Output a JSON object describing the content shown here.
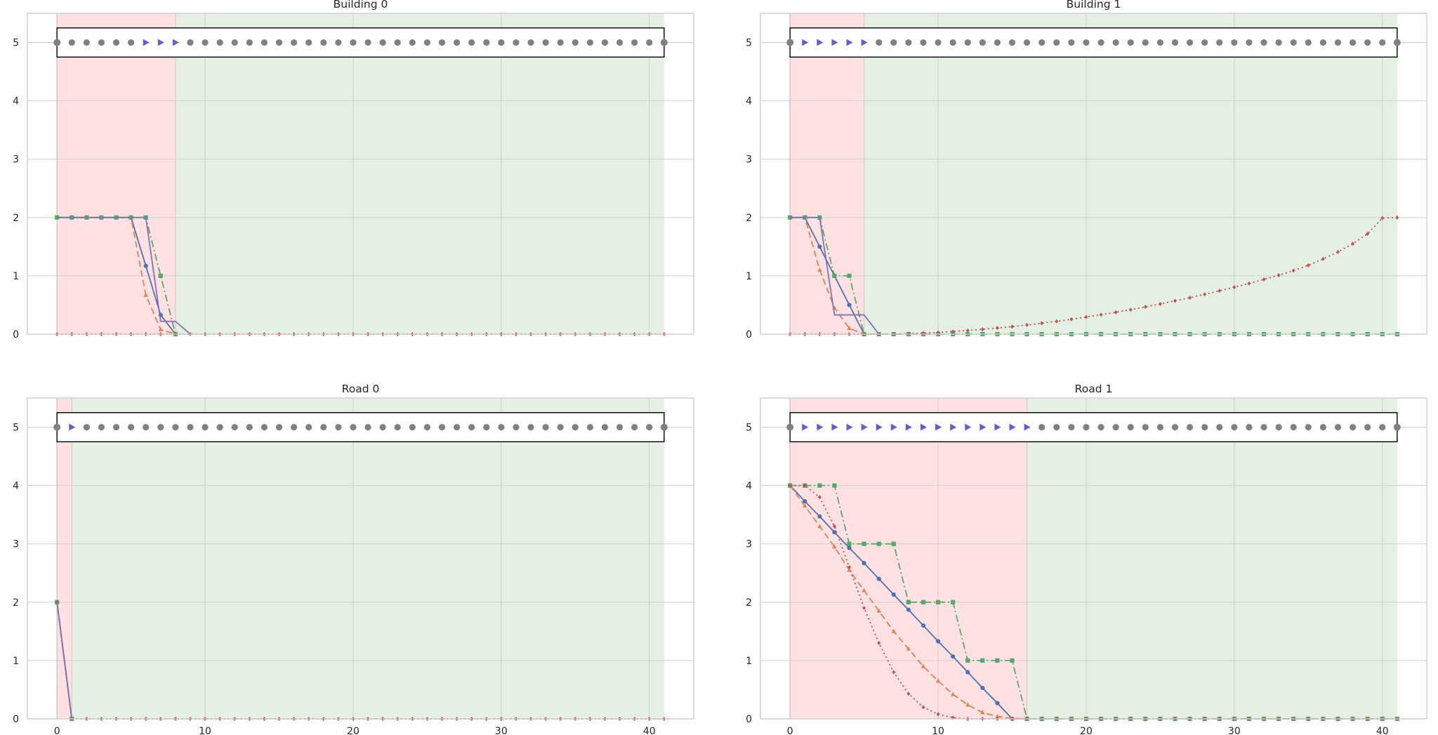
{
  "figure": {
    "background": "#ffffff",
    "colors": {
      "red_region": "#ffe1e3",
      "green_region": "#e3f0e2",
      "grid": "#cfcfcf",
      "spine": "#cccccc",
      "marker_gray": "#808080",
      "marker_arrow": "#6a5acd",
      "box_edge": "#000000",
      "series_blue": "#4c72b0",
      "series_orange": "#dd8452",
      "series_green": "#55a868",
      "series_red": "#c44e52",
      "series_purple": "#8172b3"
    }
  },
  "chart_data": [
    {
      "title": "Building 0",
      "type": "line",
      "xlim": [
        -2,
        43
      ],
      "ylim": [
        0,
        5.5
      ],
      "xticks": [
        0,
        10,
        20,
        30,
        40
      ],
      "yticks": [
        0,
        1,
        2,
        3,
        4,
        5
      ],
      "show_xtick_labels": false,
      "grid": true,
      "red_region": [
        0,
        8
      ],
      "green_region": [
        8,
        41
      ],
      "status_row": {
        "y": 5,
        "arrow_steps": [
          6,
          7,
          8
        ]
      },
      "series": [
        {
          "style": "solid",
          "color": "#4c72b0",
          "marker": "circle",
          "x": [
            0,
            1,
            2,
            3,
            4,
            5,
            6,
            7,
            8
          ],
          "y": [
            2,
            2,
            2,
            2,
            2,
            2,
            1.17,
            0.33,
            0
          ]
        },
        {
          "style": "dashed",
          "color": "#dd8452",
          "marker": "triangle",
          "x": [
            0,
            1,
            2,
            3,
            4,
            5,
            6,
            7,
            8
          ],
          "y": [
            2,
            2,
            2,
            2,
            2,
            2,
            0.67,
            0.08,
            0
          ]
        },
        {
          "style": "dashdot",
          "color": "#55a868",
          "marker": "square",
          "x": [
            0,
            1,
            2,
            3,
            4,
            5,
            6,
            7,
            8
          ],
          "y": [
            2,
            2,
            2,
            2,
            2,
            2,
            2,
            1,
            0
          ]
        },
        {
          "style": "dotted",
          "color": "#c44e52",
          "marker": "diamond",
          "x": [
            0,
            1,
            2,
            3,
            4,
            5,
            6,
            7,
            8,
            9,
            10,
            11,
            12,
            13,
            14,
            15,
            16,
            17,
            18,
            19,
            20,
            21,
            22,
            23,
            24,
            25,
            26,
            27,
            28,
            29,
            30,
            31,
            32,
            33,
            34,
            35,
            36,
            37,
            38,
            39,
            40,
            41
          ],
          "y": [
            0,
            0,
            0,
            0,
            0,
            0,
            0,
            0,
            0,
            0,
            0,
            0,
            0,
            0,
            0,
            0,
            0,
            0,
            0,
            0,
            0,
            0,
            0,
            0,
            0,
            0,
            0,
            0,
            0,
            0,
            0,
            0,
            0,
            0,
            0,
            0,
            0,
            0,
            0,
            0,
            0,
            0
          ]
        },
        {
          "style": "solid",
          "color": "#8172b3",
          "marker": "none",
          "x": [
            0,
            1,
            2,
            3,
            4,
            5,
            6,
            7,
            8,
            9
          ],
          "y": [
            2,
            2,
            2,
            2,
            2,
            2,
            2,
            0.22,
            0.22,
            0
          ]
        }
      ]
    },
    {
      "title": "Building 1",
      "type": "line",
      "xlim": [
        -2,
        43
      ],
      "ylim": [
        0,
        5.5
      ],
      "xticks": [
        0,
        10,
        20,
        30,
        40
      ],
      "yticks": [
        0,
        1,
        2,
        3,
        4,
        5
      ],
      "show_xtick_labels": false,
      "grid": true,
      "red_region": [
        0,
        5
      ],
      "green_region": [
        5,
        41
      ],
      "status_row": {
        "y": 5,
        "arrow_steps": [
          1,
          2,
          3,
          4,
          5
        ]
      },
      "series": [
        {
          "style": "solid",
          "color": "#4c72b0",
          "marker": "circle",
          "x": [
            0,
            1,
            2,
            3,
            4,
            5
          ],
          "y": [
            2,
            2,
            1.5,
            1,
            0.5,
            0
          ]
        },
        {
          "style": "dashed",
          "color": "#dd8452",
          "marker": "triangle",
          "x": [
            0,
            1,
            2,
            3,
            4,
            5
          ],
          "y": [
            2,
            2,
            1.1,
            0.45,
            0.1,
            0
          ]
        },
        {
          "style": "dashdot",
          "color": "#55a868",
          "marker": "square",
          "x": [
            0,
            1,
            2,
            3,
            4,
            5,
            6,
            7,
            8,
            9,
            10,
            11,
            12,
            13,
            14,
            15,
            16,
            17,
            18,
            19,
            20,
            21,
            22,
            23,
            24,
            25,
            26,
            27,
            28,
            29,
            30,
            31,
            32,
            33,
            34,
            35,
            36,
            37,
            38,
            39,
            40,
            41
          ],
          "y": [
            2,
            2,
            2,
            1,
            1,
            0,
            0,
            0,
            0,
            0,
            0,
            0,
            0,
            0,
            0,
            0,
            0,
            0,
            0,
            0,
            0,
            0,
            0,
            0,
            0,
            0,
            0,
            0,
            0,
            0,
            0,
            0,
            0,
            0,
            0,
            0,
            0,
            0,
            0,
            0,
            0,
            0
          ]
        },
        {
          "style": "dotted",
          "color": "#c44e52",
          "marker": "diamond",
          "x": [
            0,
            1,
            2,
            3,
            4,
            5,
            6,
            7,
            8,
            9,
            10,
            11,
            12,
            13,
            14,
            15,
            16,
            17,
            18,
            19,
            20,
            21,
            22,
            23,
            24,
            25,
            26,
            27,
            28,
            29,
            30,
            31,
            32,
            33,
            34,
            35,
            36,
            37,
            38,
            39,
            40,
            41
          ],
          "y": [
            0,
            0,
            0,
            0,
            0,
            0,
            0,
            0,
            0.008,
            0.017,
            0.03,
            0.045,
            0.063,
            0.083,
            0.105,
            0.13,
            0.158,
            0.188,
            0.22,
            0.255,
            0.293,
            0.333,
            0.375,
            0.42,
            0.468,
            0.518,
            0.57,
            0.625,
            0.683,
            0.743,
            0.805,
            0.87,
            0.938,
            1.01,
            1.09,
            1.18,
            1.29,
            1.41,
            1.55,
            1.72,
            1.99,
            2
          ]
        },
        {
          "style": "solid",
          "color": "#8172b3",
          "marker": "none",
          "x": [
            0,
            1,
            2,
            3,
            4,
            5,
            6
          ],
          "y": [
            2,
            2,
            2,
            0.33,
            0.33,
            0.33,
            0
          ]
        }
      ]
    },
    {
      "title": "Road 0",
      "type": "line",
      "xlim": [
        -2,
        43
      ],
      "ylim": [
        0,
        5.5
      ],
      "xticks": [
        0,
        10,
        20,
        30,
        40
      ],
      "yticks": [
        0,
        1,
        2,
        3,
        4,
        5
      ],
      "show_xtick_labels": true,
      "grid": true,
      "red_region": [
        0,
        1
      ],
      "green_region": [
        1,
        41
      ],
      "status_row": {
        "y": 5,
        "arrow_steps": [
          1
        ]
      },
      "series": [
        {
          "style": "solid",
          "color": "#4c72b0",
          "marker": "circle",
          "x": [
            0,
            1
          ],
          "y": [
            2,
            0
          ]
        },
        {
          "style": "dashed",
          "color": "#dd8452",
          "marker": "triangle",
          "x": [
            0,
            1
          ],
          "y": [
            2,
            0
          ]
        },
        {
          "style": "dashdot",
          "color": "#55a868",
          "marker": "square",
          "x": [
            0,
            1
          ],
          "y": [
            2,
            0
          ]
        },
        {
          "style": "dotted",
          "color": "#c44e52",
          "marker": "diamond",
          "x": [
            0,
            1,
            2,
            3,
            4,
            5,
            6,
            7,
            8,
            9,
            10,
            11,
            12,
            13,
            14,
            15,
            16,
            17,
            18,
            19,
            20,
            21,
            22,
            23,
            24,
            25,
            26,
            27,
            28,
            29,
            30,
            31,
            32,
            33,
            34,
            35,
            36,
            37,
            38,
            39,
            40,
            41
          ],
          "y": [
            2,
            0,
            0,
            0,
            0,
            0,
            0,
            0,
            0,
            0,
            0,
            0,
            0,
            0,
            0,
            0,
            0,
            0,
            0,
            0,
            0,
            0,
            0,
            0,
            0,
            0,
            0,
            0,
            0,
            0,
            0,
            0,
            0,
            0,
            0,
            0,
            0,
            0,
            0,
            0,
            0,
            0
          ]
        },
        {
          "style": "solid",
          "color": "#8172b3",
          "marker": "none",
          "x": [
            0,
            1
          ],
          "y": [
            2,
            0
          ]
        }
      ]
    },
    {
      "title": "Road 1",
      "type": "line",
      "xlim": [
        -2,
        43
      ],
      "ylim": [
        0,
        5.5
      ],
      "xticks": [
        0,
        10,
        20,
        30,
        40
      ],
      "yticks": [
        0,
        1,
        2,
        3,
        4,
        5
      ],
      "show_xtick_labels": true,
      "grid": true,
      "red_region": [
        0,
        16
      ],
      "green_region": [
        16,
        41
      ],
      "status_row": {
        "y": 5,
        "arrow_steps": [
          1,
          2,
          3,
          4,
          5,
          6,
          7,
          8,
          9,
          10,
          11,
          12,
          13,
          14,
          15,
          16
        ]
      },
      "series": [
        {
          "style": "solid",
          "color": "#4c72b0",
          "marker": "circle",
          "x": [
            0,
            1,
            2,
            3,
            4,
            5,
            6,
            7,
            8,
            9,
            10,
            11,
            12,
            13,
            14,
            15,
            16
          ],
          "y": [
            4,
            3.73,
            3.47,
            3.2,
            2.93,
            2.67,
            2.4,
            2.13,
            1.87,
            1.6,
            1.33,
            1.07,
            0.8,
            0.53,
            0.27,
            0,
            0
          ]
        },
        {
          "style": "dashed",
          "color": "#dd8452",
          "marker": "triangle",
          "x": [
            0,
            1,
            2,
            3,
            4,
            5,
            6,
            7,
            8,
            9,
            10,
            11,
            12,
            13,
            14,
            15,
            16
          ],
          "y": [
            4,
            3.65,
            3.3,
            2.95,
            2.55,
            2.2,
            1.85,
            1.5,
            1.2,
            0.9,
            0.65,
            0.42,
            0.24,
            0.11,
            0.04,
            0.01,
            0
          ]
        },
        {
          "style": "dashdot",
          "color": "#55a868",
          "marker": "square",
          "x": [
            0,
            1,
            2,
            3,
            4,
            5,
            6,
            7,
            8,
            9,
            10,
            11,
            12,
            13,
            14,
            15,
            16,
            17,
            18,
            19,
            20,
            21,
            22,
            23,
            24,
            25,
            26,
            27,
            28,
            29,
            30,
            31,
            32,
            33,
            34,
            35,
            36,
            37,
            38,
            39,
            40,
            41
          ],
          "y": [
            4,
            4,
            4,
            4,
            3,
            3,
            3,
            3,
            2,
            2,
            2,
            2,
            1,
            1,
            1,
            1,
            0,
            0,
            0,
            0,
            0,
            0,
            0,
            0,
            0,
            0,
            0,
            0,
            0,
            0,
            0,
            0,
            0,
            0,
            0,
            0,
            0,
            0,
            0,
            0,
            0,
            0
          ]
        },
        {
          "style": "dotted",
          "color": "#c44e52",
          "marker": "diamond",
          "x": [
            0,
            1,
            2,
            3,
            4,
            5,
            6,
            7,
            8,
            9,
            10,
            11,
            12,
            13,
            14,
            15,
            16,
            17,
            18,
            19,
            20,
            21,
            22,
            23,
            24,
            25,
            26,
            27,
            28,
            29,
            30,
            31,
            32,
            33,
            34,
            35,
            36,
            37,
            38,
            39,
            40,
            41
          ],
          "y": [
            4,
            4,
            3.8,
            3.3,
            2.6,
            1.9,
            1.3,
            0.8,
            0.43,
            0.2,
            0.08,
            0.02,
            0,
            0,
            0,
            0,
            0,
            0,
            0,
            0,
            0,
            0,
            0,
            0,
            0,
            0,
            0,
            0,
            0,
            0,
            0,
            0,
            0,
            0,
            0,
            0,
            0,
            0,
            0,
            0,
            0,
            0
          ]
        }
      ]
    }
  ]
}
